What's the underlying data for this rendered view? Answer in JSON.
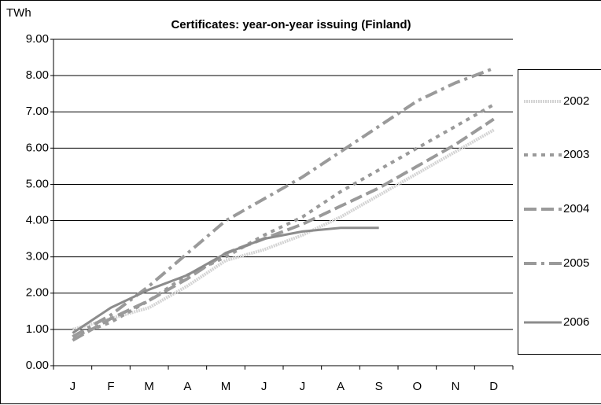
{
  "chart_data": {
    "type": "line",
    "title": "Certificates: year-on-year issuing (Finland)",
    "y_label": "TWh",
    "categories": [
      "J",
      "F",
      "M",
      "A",
      "M",
      "J",
      "J",
      "A",
      "S",
      "O",
      "N",
      "D"
    ],
    "series": [
      {
        "name": "2002",
        "color": "#d4d4d4",
        "dash": "dotted",
        "values": [
          1.0,
          1.3,
          1.6,
          2.2,
          2.9,
          3.2,
          3.6,
          4.1,
          4.7,
          5.3,
          5.9,
          6.5
        ]
      },
      {
        "name": "2003",
        "color": "#9a9a9a",
        "dash": "dashed",
        "values": [
          0.8,
          1.2,
          1.8,
          2.5,
          3.0,
          3.6,
          4.1,
          4.8,
          5.4,
          6.0,
          6.6,
          7.2
        ]
      },
      {
        "name": "2004",
        "color": "#9a9a9a",
        "dash": "longdash",
        "values": [
          0.7,
          1.3,
          1.8,
          2.4,
          3.1,
          3.5,
          3.9,
          4.4,
          4.9,
          5.5,
          6.1,
          6.8
        ]
      },
      {
        "name": "2005",
        "color": "#9a9a9a",
        "dash": "dashdot",
        "values": [
          0.8,
          1.4,
          2.2,
          3.1,
          4.0,
          4.6,
          5.2,
          5.9,
          6.6,
          7.3,
          7.8,
          8.2
        ]
      },
      {
        "name": "2006",
        "color": "#8c8c8c",
        "dash": "solid",
        "values": [
          0.9,
          1.6,
          2.1,
          2.5,
          3.1,
          3.5,
          3.7,
          3.8,
          3.8,
          null,
          null,
          null
        ]
      }
    ],
    "ylim": [
      0,
      9
    ],
    "yticks": [
      {
        "value": 0,
        "label": "0.00"
      },
      {
        "value": 1,
        "label": "1.00"
      },
      {
        "value": 2,
        "label": "2.00"
      },
      {
        "value": 3,
        "label": "3.00"
      },
      {
        "value": 4,
        "label": "4.00"
      },
      {
        "value": 5,
        "label": "5.00"
      },
      {
        "value": 6,
        "label": "6.00"
      },
      {
        "value": 7,
        "label": "7.00"
      },
      {
        "value": 8,
        "label": "8.00"
      },
      {
        "value": 9,
        "label": "9.00"
      }
    ],
    "grid": true,
    "legend": "right"
  }
}
